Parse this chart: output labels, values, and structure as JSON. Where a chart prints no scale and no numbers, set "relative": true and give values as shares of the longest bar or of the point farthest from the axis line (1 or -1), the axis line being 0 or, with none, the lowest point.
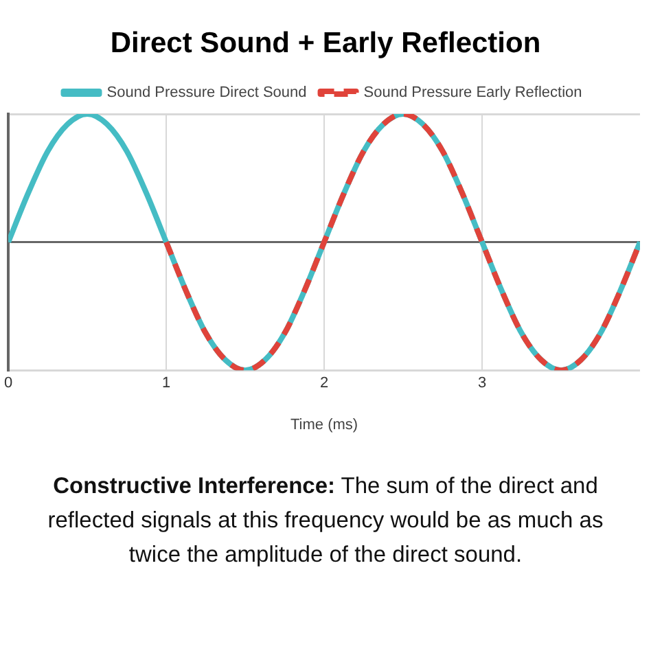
{
  "chart_data": {
    "type": "line",
    "title": "Direct Sound + Early Reflection",
    "xlabel": "Time (ms)",
    "relative": true,
    "xlim": [
      0,
      4
    ],
    "xticks": [
      0,
      1,
      2,
      3
    ],
    "grid": true,
    "legend": "top",
    "marker": "none",
    "annotations": [
      "Constructive Interference: The sum of the direct and reflected signals at this frequency would be as much as twice the amplitude of the direct sound."
    ],
    "series": [
      {
        "name": "Sound Pressure Direct Sound",
        "color": "#45bcc4",
        "line_style": "solid",
        "x": [
          0,
          0.125,
          0.25,
          0.375,
          0.5,
          0.625,
          0.75,
          0.875,
          1,
          1.125,
          1.25,
          1.375,
          1.5,
          1.625,
          1.75,
          1.875,
          2,
          2.125,
          2.25,
          2.375,
          2.5,
          2.625,
          2.75,
          2.875,
          3,
          3.125,
          3.25,
          3.375,
          3.5,
          3.625,
          3.75,
          3.875,
          4
        ],
        "values": [
          0,
          0.38,
          0.71,
          0.92,
          1,
          0.92,
          0.71,
          0.38,
          0,
          -0.38,
          -0.71,
          -0.92,
          -1,
          -0.92,
          -0.71,
          -0.38,
          0,
          0.38,
          0.71,
          0.92,
          1,
          0.92,
          0.71,
          0.38,
          0,
          -0.38,
          -0.71,
          -0.92,
          -1,
          -0.92,
          -0.71,
          -0.38,
          0
        ]
      },
      {
        "name": "Sound Pressure Early Reflection",
        "color": "#e0433a",
        "line_style": "dashed",
        "x": [
          1,
          1.125,
          1.25,
          1.375,
          1.5,
          1.625,
          1.75,
          1.875,
          2,
          2.125,
          2.25,
          2.375,
          2.5,
          2.625,
          2.75,
          2.875,
          3,
          3.125,
          3.25,
          3.375,
          3.5,
          3.625,
          3.75,
          3.875,
          4
        ],
        "values": [
          0,
          -0.38,
          -0.71,
          -0.92,
          -1,
          -0.92,
          -0.71,
          -0.38,
          0,
          0.38,
          0.71,
          0.92,
          1,
          0.92,
          0.71,
          0.38,
          0,
          -0.38,
          -0.71,
          -0.92,
          -1,
          -0.92,
          -0.71,
          -0.38,
          0
        ]
      }
    ]
  }
}
